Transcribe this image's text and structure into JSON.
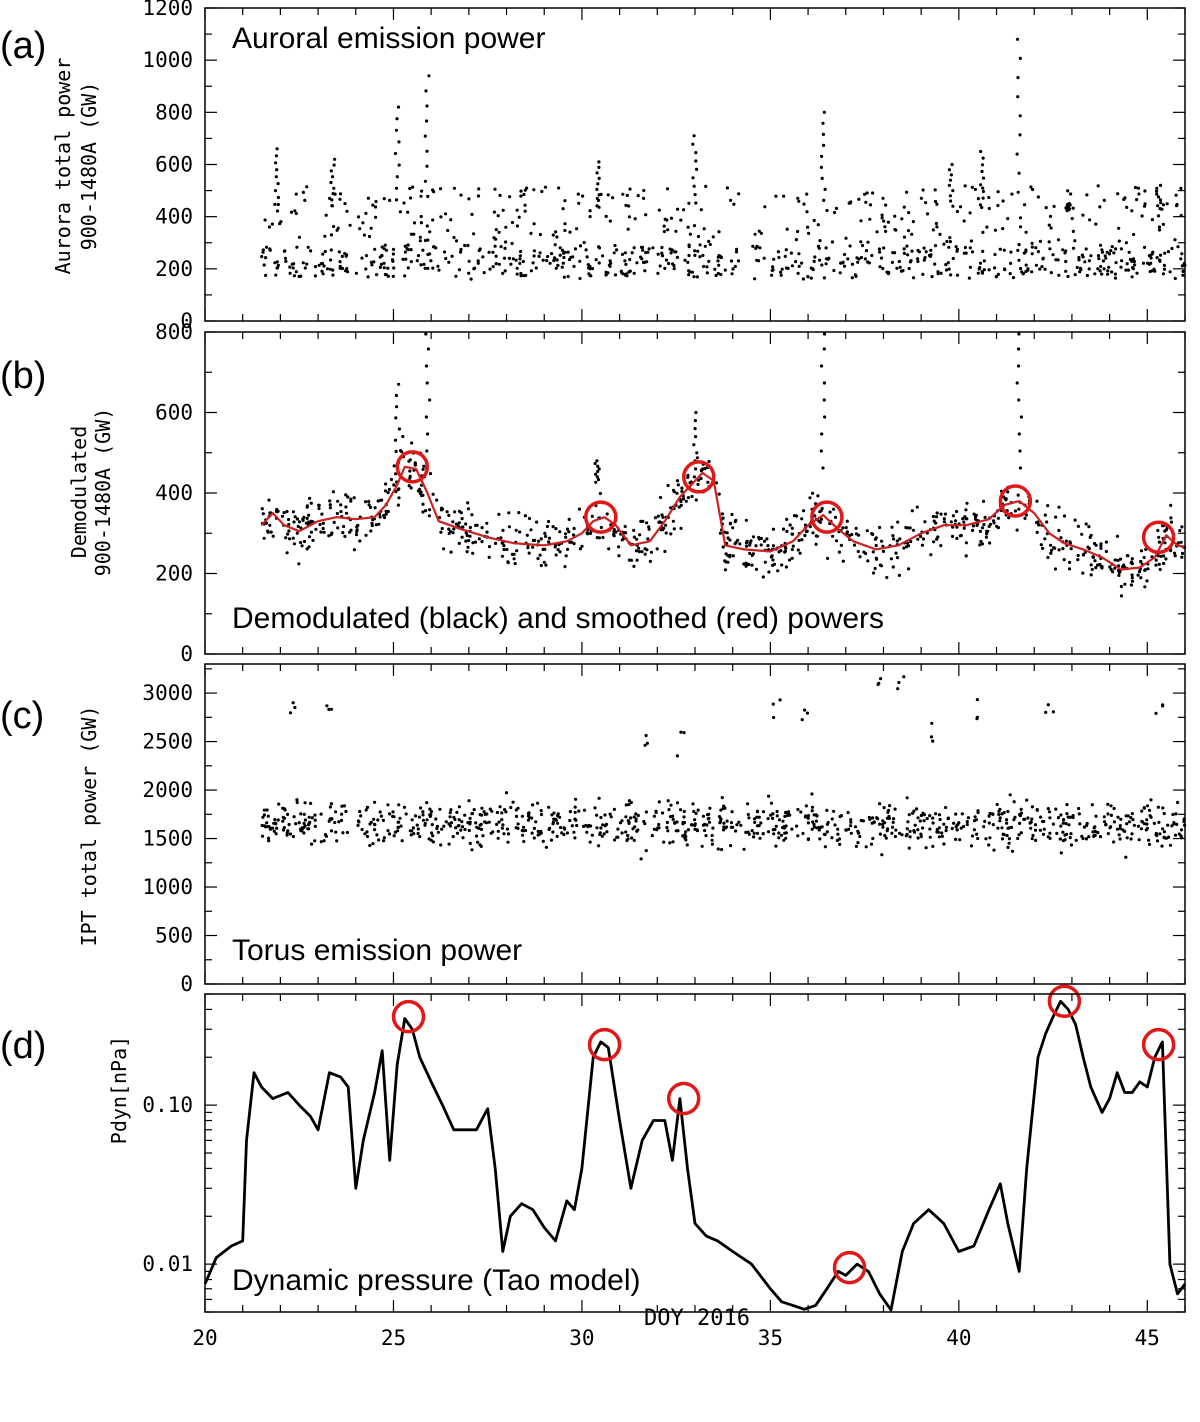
{
  "chart_data": [
    {
      "type": "scatter",
      "panel_label": "(a)",
      "title": "Auroral emission power",
      "ylabel": [
        "Aurora total power",
        "900-1480A (GW)"
      ],
      "xlim": [
        20,
        46
      ],
      "ylim": [
        0,
        1200
      ],
      "yticks": [
        0,
        200,
        400,
        600,
        800,
        1000,
        1200
      ],
      "ytick_labels": [
        "0",
        "200",
        "400",
        "600",
        "800",
        "1000",
        "1200"
      ],
      "x_range": [
        21.5,
        46
      ],
      "base_level": 300,
      "spread": 140,
      "peaks": [
        {
          "x": 21.9,
          "y": 660
        },
        {
          "x": 23.4,
          "y": 620
        },
        {
          "x": 25.1,
          "y": 820
        },
        {
          "x": 25.9,
          "y": 940
        },
        {
          "x": 30.4,
          "y": 610
        },
        {
          "x": 33.0,
          "y": 710
        },
        {
          "x": 36.4,
          "y": 800
        },
        {
          "x": 39.8,
          "y": 600
        },
        {
          "x": 40.6,
          "y": 650
        },
        {
          "x": 41.6,
          "y": 1080
        },
        {
          "x": 42.9,
          "y": 450
        },
        {
          "x": 45.3,
          "y": 520
        }
      ],
      "series": [
        {
          "name": "",
          "color": "#000000"
        }
      ]
    },
    {
      "type": "scatter",
      "panel_label": "(b)",
      "title": "Demodulated (black) and smoothed (red) powers",
      "ylabel": [
        "Demodulated",
        "900-1480A (GW)"
      ],
      "xlim": [
        20,
        46
      ],
      "ylim": [
        0,
        800
      ],
      "yticks": [
        0,
        200,
        400,
        600,
        800
      ],
      "ytick_labels": [
        "0",
        "200",
        "400",
        "600",
        "800"
      ],
      "x_range": [
        21.5,
        46
      ],
      "spread": 45,
      "peaks": [
        {
          "x": 25.1,
          "y": 670
        },
        {
          "x": 25.9,
          "y": 800
        },
        {
          "x": 30.4,
          "y": 480
        },
        {
          "x": 33.0,
          "y": 600
        },
        {
          "x": 36.4,
          "y": 800
        },
        {
          "x": 41.6,
          "y": 800
        }
      ],
      "series": [
        {
          "name": "black",
          "color": "#000000"
        },
        {
          "name": "red",
          "color": "#cc2222",
          "x": [
            21.5,
            21.8,
            22.1,
            22.5,
            23.0,
            23.5,
            24.0,
            24.5,
            24.8,
            25.1,
            25.3,
            25.6,
            25.9,
            26.2,
            26.8,
            27.5,
            28.2,
            29.0,
            29.6,
            30.0,
            30.3,
            30.6,
            30.9,
            31.3,
            31.8,
            32.2,
            32.6,
            32.9,
            33.2,
            33.5,
            33.8,
            34.3,
            35.0,
            35.6,
            36.0,
            36.4,
            36.8,
            37.2,
            37.8,
            38.4,
            39.0,
            39.6,
            40.2,
            40.8,
            41.2,
            41.6,
            42.0,
            42.4,
            42.8,
            43.3,
            43.8,
            44.3,
            44.8,
            45.2,
            45.5,
            45.8,
            46.0
          ],
          "y": [
            320,
            350,
            320,
            305,
            330,
            340,
            335,
            340,
            370,
            420,
            465,
            460,
            400,
            330,
            310,
            290,
            275,
            270,
            280,
            300,
            330,
            340,
            320,
            270,
            280,
            330,
            390,
            420,
            450,
            430,
            270,
            260,
            255,
            280,
            320,
            345,
            310,
            280,
            260,
            270,
            300,
            320,
            320,
            335,
            370,
            380,
            350,
            300,
            275,
            260,
            240,
            210,
            215,
            240,
            295,
            270,
            265
          ]
        }
      ],
      "annotations": [
        {
          "type": "circle",
          "x": 25.5,
          "y": 465
        },
        {
          "type": "circle",
          "x": 30.5,
          "y": 340
        },
        {
          "type": "circle",
          "x": 33.1,
          "y": 440
        },
        {
          "type": "circle",
          "x": 36.5,
          "y": 340
        },
        {
          "type": "circle",
          "x": 41.5,
          "y": 380
        },
        {
          "type": "circle",
          "x": 45.3,
          "y": 290
        }
      ]
    },
    {
      "type": "scatter",
      "panel_label": "(c)",
      "title": "Torus emission power",
      "ylabel": [
        "IPT total power (GW)"
      ],
      "xlim": [
        20,
        46
      ],
      "ylim": [
        0,
        3300
      ],
      "yticks": [
        0,
        500,
        1000,
        1500,
        2000,
        2500,
        3000
      ],
      "ytick_labels": [
        "0",
        "500",
        "1000",
        "1500",
        "2000",
        "2500",
        "3000"
      ],
      "x_range": [
        21.5,
        46
      ],
      "base_level": 1650,
      "spread": 160,
      "outliers": [
        {
          "x": 22.3,
          "y": 2950
        },
        {
          "x": 23.3,
          "y": 3000
        },
        {
          "x": 31.7,
          "y": 2650
        },
        {
          "x": 32.6,
          "y": 2600
        },
        {
          "x": 35.2,
          "y": 2950
        },
        {
          "x": 35.9,
          "y": 2900
        },
        {
          "x": 37.8,
          "y": 3200
        },
        {
          "x": 38.5,
          "y": 3250
        },
        {
          "x": 39.4,
          "y": 2700
        },
        {
          "x": 40.4,
          "y": 2950
        },
        {
          "x": 42.4,
          "y": 2950
        },
        {
          "x": 45.3,
          "y": 2900
        }
      ],
      "series": [
        {
          "name": "",
          "color": "#000000"
        }
      ]
    },
    {
      "type": "line",
      "panel_label": "(d)",
      "title": "Dynamic pressure (Tao model)",
      "ylabel": [
        "Pdyn[nPa]"
      ],
      "xlabel": "DOY 2016",
      "xlim": [
        20,
        46
      ],
      "ylim": [
        0.005,
        0.5
      ],
      "y_scale": "log",
      "yticks": [
        0.01,
        0.1
      ],
      "ytick_labels": [
        "0.01",
        "0.10"
      ],
      "xticks": [
        20,
        25,
        30,
        35,
        40,
        45
      ],
      "xtick_labels": [
        "20",
        "25",
        "30",
        "35",
        "40",
        "45"
      ],
      "series": [
        {
          "name": "",
          "color": "#000000",
          "x": [
            20.0,
            20.3,
            20.7,
            21.0,
            21.1,
            21.3,
            21.5,
            21.8,
            22.2,
            22.5,
            22.8,
            23.0,
            23.3,
            23.6,
            23.8,
            24.0,
            24.2,
            24.5,
            24.7,
            24.9,
            25.1,
            25.3,
            25.5,
            25.7,
            26.0,
            26.3,
            26.6,
            26.8,
            27.2,
            27.5,
            27.7,
            27.9,
            28.1,
            28.4,
            28.7,
            29.0,
            29.3,
            29.6,
            29.8,
            30.0,
            30.3,
            30.5,
            30.7,
            31.0,
            31.3,
            31.6,
            31.9,
            32.2,
            32.4,
            32.6,
            32.8,
            33.0,
            33.3,
            33.6,
            34.0,
            34.5,
            35.0,
            35.3,
            35.6,
            35.9,
            36.2,
            36.5,
            36.8,
            37.0,
            37.3,
            37.6,
            37.9,
            38.2,
            38.5,
            38.8,
            39.2,
            39.6,
            40.0,
            40.4,
            40.8,
            41.1,
            41.3,
            41.6,
            41.8,
            42.1,
            42.3,
            42.5,
            42.7,
            42.9,
            43.1,
            43.3,
            43.5,
            43.8,
            44.0,
            44.2,
            44.4,
            44.6,
            44.8,
            45.0,
            45.2,
            45.4,
            45.6,
            45.8,
            46.0
          ],
          "y": [
            0.0075,
            0.011,
            0.013,
            0.014,
            0.06,
            0.16,
            0.13,
            0.11,
            0.12,
            0.1,
            0.085,
            0.07,
            0.16,
            0.15,
            0.13,
            0.03,
            0.06,
            0.12,
            0.22,
            0.045,
            0.18,
            0.35,
            0.3,
            0.2,
            0.14,
            0.1,
            0.07,
            0.07,
            0.07,
            0.095,
            0.04,
            0.012,
            0.02,
            0.024,
            0.022,
            0.017,
            0.014,
            0.025,
            0.022,
            0.04,
            0.2,
            0.25,
            0.23,
            0.08,
            0.03,
            0.06,
            0.08,
            0.08,
            0.045,
            0.11,
            0.04,
            0.018,
            0.015,
            0.014,
            0.012,
            0.01,
            0.007,
            0.0058,
            0.0055,
            0.0052,
            0.0055,
            0.007,
            0.009,
            0.0085,
            0.01,
            0.009,
            0.0065,
            0.005,
            0.012,
            0.018,
            0.022,
            0.018,
            0.012,
            0.013,
            0.022,
            0.032,
            0.018,
            0.009,
            0.04,
            0.2,
            0.28,
            0.36,
            0.45,
            0.4,
            0.32,
            0.2,
            0.13,
            0.09,
            0.11,
            0.16,
            0.12,
            0.12,
            0.14,
            0.13,
            0.2,
            0.25,
            0.01,
            0.0065,
            0.0075
          ]
        }
      ],
      "annotations": [
        {
          "type": "circle",
          "x": 25.4,
          "y": 0.36
        },
        {
          "type": "circle",
          "x": 30.6,
          "y": 0.24
        },
        {
          "type": "circle",
          "x": 32.7,
          "y": 0.11
        },
        {
          "type": "circle",
          "x": 37.1,
          "y": 0.0095
        },
        {
          "type": "circle",
          "x": 42.8,
          "y": 0.45
        },
        {
          "type": "circle",
          "x": 45.3,
          "y": 0.24
        }
      ]
    }
  ]
}
